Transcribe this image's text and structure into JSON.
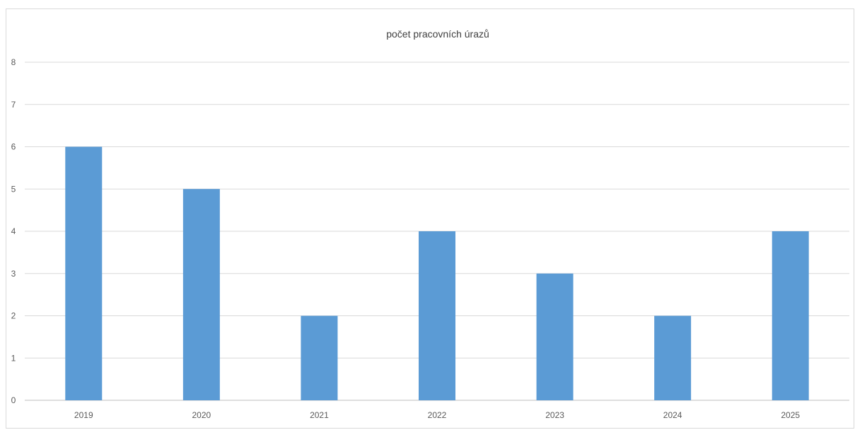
{
  "chart_data": {
    "type": "bar",
    "title": "počet pracovních úrazů",
    "xlabel": "",
    "ylabel": "",
    "categories": [
      "2019",
      "2020",
      "2021",
      "2022",
      "2023",
      "2024",
      "2025"
    ],
    "values": [
      6,
      5,
      2,
      4,
      3,
      2,
      4
    ],
    "ylim": [
      0,
      8
    ],
    "yticks": [
      "0",
      "1",
      "2",
      "3",
      "4",
      "5",
      "6",
      "7",
      "8"
    ],
    "grid": true,
    "legend": "none",
    "bar_color": "#5b9bd5",
    "grid_color": "#d9d9d9",
    "axis_color": "#bfbfbf",
    "text_color": "#595959"
  }
}
